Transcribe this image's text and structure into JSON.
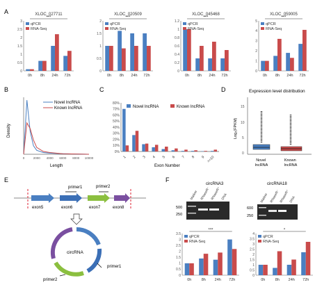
{
  "colors": {
    "qpcr": "#4a7fc1",
    "rnaseq": "#c94b4b",
    "novel": "#4a7fc1",
    "known": "#c94b4b",
    "exon5": "#4a7fc1",
    "exon6": "#3b6fb6",
    "exon7": "#8bbf3f",
    "exon8": "#7a4fa0",
    "axis": "#555555",
    "gel_bg": "#2a2a2a"
  },
  "panels": {
    "A": {
      "letter": "A"
    },
    "B": {
      "letter": "B"
    },
    "C": {
      "letter": "C"
    },
    "D": {
      "letter": "D"
    },
    "E": {
      "letter": "E"
    },
    "F": {
      "letter": "F"
    }
  },
  "panel_a": {
    "yticks": [
      "0",
      "0.5",
      "1",
      "1.5",
      "2",
      "2.5",
      "3"
    ],
    "legend": [
      "qPCR",
      "RNA-Seq"
    ],
    "significance": "***"
  },
  "panel_b": {
    "xlabel": "Length",
    "ylabel": "Density",
    "xticks": [
      "0",
      "2000",
      "4000",
      "6000",
      "8000",
      "10000"
    ],
    "legend": [
      "Novel lncRNA",
      "Known lncRNA"
    ]
  },
  "panel_c": {
    "xlabel": "Exon Number",
    "xticks": [
      "1",
      "2",
      "3",
      "4",
      "5",
      "6",
      "7",
      "8",
      "9",
      ">=10"
    ],
    "yticks": [
      "0%",
      "10%",
      "20%",
      "30%",
      "40%",
      "50%",
      "60%",
      "70%",
      "80%"
    ],
    "legend": [
      "Novel lncRNA",
      "Known lncRNA"
    ]
  },
  "panel_d": {
    "title": "Expression level distribution",
    "ylabel": "Log₂(FPKM)",
    "categories": [
      "Novel\nlncRNA",
      "Known\nlncRNA"
    ]
  },
  "panel_e": {
    "exons": [
      "exon5",
      "exon6",
      "exon7",
      "exon8"
    ],
    "primers": [
      "primer1",
      "primer2"
    ],
    "circ_label": "circRNA",
    "primer1": "primer1",
    "primer2": "primer2"
  },
  "panel_f": {
    "gel_titles": [
      "circRNA3",
      "circRNA18"
    ],
    "gel_lanes": [
      "Marker",
      "RNaseR⁻",
      "RNaseR⁺",
      "DNA"
    ],
    "ladder": [
      "500",
      "250"
    ],
    "ladder2": [
      "600",
      "250"
    ],
    "legend": [
      "qPCR",
      "RNA-Seq"
    ],
    "sig1": "***",
    "sig2": "*"
  },
  "chart_data": [
    {
      "type": "bar",
      "title": "XLOC_027711",
      "categories": [
        "0h",
        "8h",
        "24h",
        "72h"
      ],
      "series": [
        {
          "name": "qPCR",
          "values": [
            0.1,
            0.6,
            1.5,
            0.9
          ]
        },
        {
          "name": "RNA-Seq",
          "values": [
            0.1,
            0.6,
            2.2,
            1.2
          ]
        }
      ],
      "ylim": [
        0,
        3
      ],
      "yticks": [
        "0",
        "0.5",
        "1",
        "1.5",
        "2",
        "2.5",
        "3"
      ]
    },
    {
      "type": "bar",
      "title": "XLOC_020509",
      "categories": [
        "0h",
        "8h",
        "24h",
        "72h"
      ],
      "series": [
        {
          "name": "qPCR",
          "values": [
            1.0,
            1.6,
            1.5,
            1.5
          ]
        },
        {
          "name": "RNA-Seq",
          "values": [
            1.0,
            0.9,
            1.0,
            1.0
          ]
        }
      ],
      "ylim": [
        0,
        2
      ],
      "yticks": [
        "0",
        "0.5",
        "1",
        "1.5",
        "2"
      ]
    },
    {
      "type": "bar",
      "title": "XLOC_045468",
      "categories": [
        "0h",
        "8h",
        "24h",
        "72h"
      ],
      "series": [
        {
          "name": "qPCR",
          "values": [
            1.0,
            0.3,
            0.3,
            0.3
          ]
        },
        {
          "name": "RNA-Seq",
          "values": [
            1.0,
            0.6,
            0.7,
            0.5
          ]
        }
      ],
      "ylim": [
        0,
        1.2
      ],
      "yticks": [
        "0",
        "0.2",
        "0.4",
        "0.6",
        "0.8",
        "1",
        "1.2"
      ]
    },
    {
      "type": "bar",
      "title": "XLOC_059005",
      "categories": [
        "0h",
        "8h",
        "24h",
        "72h"
      ],
      "series": [
        {
          "name": "qPCR",
          "values": [
            1.0,
            1.5,
            1.8,
            2.7
          ]
        },
        {
          "name": "RNA-Seq",
          "values": [
            1.0,
            3.2,
            1.3,
            4.1
          ]
        }
      ],
      "ylim": [
        0,
        5
      ],
      "yticks": [
        "0",
        "1",
        "2",
        "3",
        "4",
        "5"
      ]
    },
    {
      "type": "line",
      "xlabel": "Length",
      "ylabel": "Density",
      "x": [
        0,
        500,
        1000,
        1500,
        2000,
        3000,
        4000,
        6000,
        8000,
        10000
      ],
      "series": [
        {
          "name": "Novel lncRNA",
          "values": [
            0,
            0.95,
            0.4,
            0.15,
            0.07,
            0.03,
            0.02,
            0.01,
            0.005,
            0
          ]
        },
        {
          "name": "Known lncRNA",
          "values": [
            0,
            0.55,
            0.45,
            0.25,
            0.12,
            0.05,
            0.03,
            0.01,
            0.005,
            0
          ]
        }
      ]
    },
    {
      "type": "bar",
      "xlabel": "Exon Number",
      "categories": [
        "1",
        "2",
        "3",
        "4",
        "5",
        "6",
        "7",
        "8",
        "9",
        ">=10"
      ],
      "series": [
        {
          "name": "Novel lncRNA",
          "values": [
            70,
            27,
            12,
            7,
            4,
            2,
            1,
            1,
            0.5,
            1
          ]
        },
        {
          "name": "Known lncRNA",
          "values": [
            10,
            34,
            13,
            11,
            8,
            5,
            3,
            2,
            1,
            3
          ]
        }
      ],
      "ylim": [
        0,
        80
      ]
    },
    {
      "type": "bar",
      "title": "circRNA3",
      "categories": [
        "0h",
        "8h",
        "24h",
        "72h"
      ],
      "series": [
        {
          "name": "qPCR",
          "values": [
            1.0,
            1.4,
            1.3,
            3.0
          ]
        },
        {
          "name": "RNA-Seq",
          "values": [
            1.0,
            1.8,
            1.9,
            2.2
          ]
        }
      ],
      "ylim": [
        0,
        3.5
      ],
      "yticks": [
        "0",
        "0.5",
        "1",
        "1.5",
        "2",
        "2.5",
        "3",
        "3.5"
      ]
    },
    {
      "type": "bar",
      "title": "circRNA18",
      "categories": [
        "0h",
        "8h",
        "24h",
        "72h"
      ],
      "series": [
        {
          "name": "qPCR",
          "values": [
            1.0,
            0.7,
            1.0,
            2.2
          ]
        },
        {
          "name": "RNA-Seq",
          "values": [
            1.0,
            2.3,
            1.5,
            3.2
          ]
        }
      ],
      "ylim": [
        0,
        4
      ],
      "yticks": [
        "0",
        "0.5",
        "1",
        "1.5",
        "2",
        "2.5",
        "3",
        "3.5",
        "4"
      ]
    }
  ]
}
